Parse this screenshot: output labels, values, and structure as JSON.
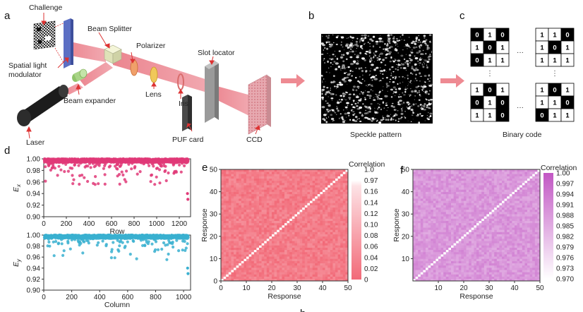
{
  "panels": {
    "a": "a",
    "b": "b",
    "c": "c",
    "d": "d",
    "e": "e",
    "f": "f",
    "partial": "b"
  },
  "setup": {
    "labels": {
      "challenge": "Challenge",
      "beam_splitter": "Beam Splitter",
      "polarizer": "Polarizer",
      "slot_locator": "Slot locator",
      "slm": [
        "Spatial light",
        "modulator"
      ],
      "lens": "Lens",
      "iris": "Iris",
      "beam_expander": "Beam expander",
      "laser": "Laser",
      "puf_card": "PUF card",
      "ccd": "CCD"
    },
    "colors": {
      "beam": "#e8707c",
      "laser_body": "#1c1c1c",
      "slm": "#6f86d8"
    }
  },
  "speckle": {
    "caption": "Speckle pattern"
  },
  "binary": {
    "caption": "Binary code",
    "ellipsis_h": "···",
    "ellipsis_v": "⋮",
    "blocks": [
      [
        [
          0,
          1,
          0
        ],
        [
          1,
          0,
          1
        ],
        [
          0,
          1,
          1
        ]
      ],
      [
        [
          1,
          1,
          0
        ],
        [
          1,
          0,
          1
        ],
        [
          1,
          1,
          1
        ]
      ],
      [
        [
          1,
          0,
          1
        ],
        [
          0,
          1,
          0
        ],
        [
          1,
          1,
          0
        ]
      ],
      [
        [
          1,
          0,
          1
        ],
        [
          1,
          1,
          0
        ],
        [
          0,
          1,
          1
        ]
      ]
    ]
  },
  "chart_data": [
    {
      "id": "d-top",
      "type": "scatter",
      "ylabel": "E",
      "ylabel_sub": "x",
      "xlabel": "Row",
      "xlim": [
        0,
        1300
      ],
      "ylim": [
        0.9,
        1.0
      ],
      "xticks": [
        0,
        200,
        400,
        600,
        800,
        1000,
        1200
      ],
      "yticks": [
        0.9,
        0.92,
        0.94,
        0.96,
        0.98,
        1.0
      ],
      "color": "#e03a78",
      "n_points": 1280
    },
    {
      "id": "d-bottom",
      "type": "scatter",
      "ylabel": "E",
      "ylabel_sub": "y",
      "xlabel": "Column",
      "xlim": [
        0,
        1050
      ],
      "ylim": [
        0.9,
        1.0
      ],
      "xticks": [
        0,
        200,
        400,
        600,
        800,
        1000
      ],
      "yticks": [
        0.9,
        0.92,
        0.94,
        0.96,
        0.98,
        1.0
      ],
      "color": "#3ab0d0",
      "n_points": 1024
    },
    {
      "id": "e",
      "type": "heatmap",
      "xlabel": "Response",
      "ylabel": "Response",
      "xlim": [
        0,
        50
      ],
      "ylim": [
        0,
        50
      ],
      "xticks": [
        0,
        10,
        20,
        30,
        40,
        50
      ],
      "yticks": [
        0,
        10,
        20,
        30,
        40,
        50
      ],
      "colorbar_title": "Correlation",
      "colorbar_ticks": [
        "1.0",
        "0.97",
        "0.16",
        "0.14",
        "0.12",
        "0.10",
        "0.08",
        "0.06",
        "0.04",
        "0.02",
        "0"
      ],
      "diagonal_value": 1.0,
      "off_diagonal_range": [
        0.0,
        0.04
      ],
      "color_low": "#f26a78",
      "color_high": "#ffffff"
    },
    {
      "id": "f",
      "type": "heatmap",
      "xlabel": "Response",
      "ylabel": "Response",
      "xlim": [
        0,
        50
      ],
      "ylim": [
        0,
        50
      ],
      "xticks": [
        10,
        20,
        30,
        40,
        50
      ],
      "yticks": [
        10,
        20,
        30,
        40,
        50
      ],
      "colorbar_title": "Correlation",
      "colorbar_ticks": [
        "1.00",
        "0.997",
        "0.994",
        "0.991",
        "0.988",
        "0.985",
        "0.982",
        "0.979",
        "0.976",
        "0.973",
        "0.970"
      ],
      "diagonal_value": 0.97,
      "off_diagonal_range": [
        0.985,
        0.992
      ],
      "color_low": "#ffffff",
      "color_high": "#c257c4"
    }
  ]
}
